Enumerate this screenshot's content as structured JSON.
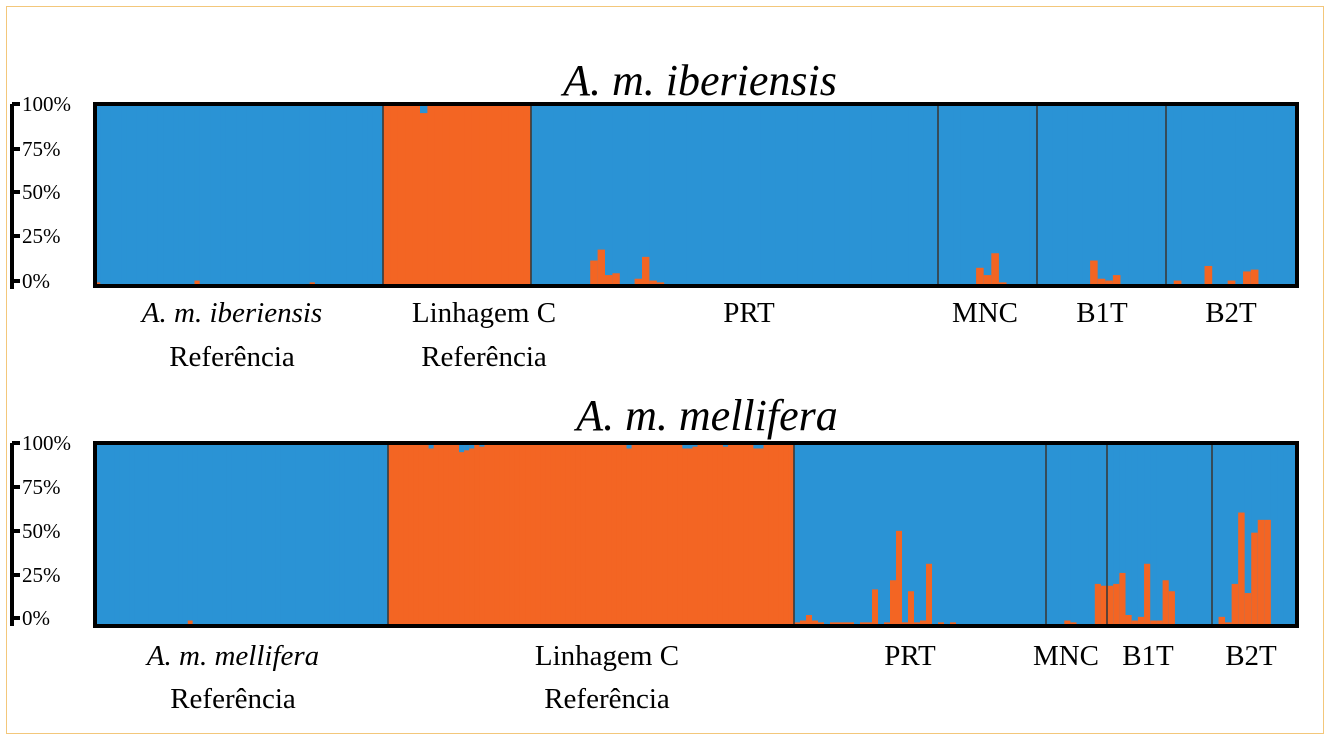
{
  "chart_data": [
    {
      "type": "bar",
      "subtype": "stacked-admixture",
      "title": "A. m. iberiensis",
      "ylim": [
        0,
        100
      ],
      "yticks": [
        "100%",
        "75%",
        "50%",
        "25%",
        "0%"
      ],
      "colors": {
        "major": "#2a93d5",
        "minor": "#f36523"
      },
      "groups": [
        {
          "label1": "A. m. iberiensis",
          "label2": "Referência",
          "label1_italic": true,
          "n": 55,
          "base": "major",
          "pattern": [
            [
              0,
              2
            ],
            [
              19,
              3
            ],
            [
              41,
              2
            ]
          ]
        },
        {
          "label1": "Linhagem C",
          "label2": "Referência",
          "label1_italic": false,
          "n": 20,
          "base": "minor",
          "pattern": [
            [
              5,
              5
            ]
          ]
        },
        {
          "label1": "PRT",
          "label2": "",
          "label1_italic": false,
          "n": 55,
          "base": "major",
          "pattern": [
            [
              8,
              14
            ],
            [
              9,
              20
            ],
            [
              10,
              6
            ],
            [
              11,
              7
            ],
            [
              14,
              4
            ],
            [
              15,
              16
            ],
            [
              16,
              3
            ],
            [
              17,
              2
            ],
            [
              22,
              1
            ]
          ]
        },
        {
          "label1": "MNC",
          "label2": "",
          "label1_italic": false,
          "n": 13,
          "base": "major",
          "pattern": [
            [
              5,
              10
            ],
            [
              6,
              6
            ],
            [
              7,
              18
            ],
            [
              8,
              2
            ]
          ]
        },
        {
          "label1": "B1T",
          "label2": "",
          "label1_italic": false,
          "n": 17,
          "base": "major",
          "pattern": [
            [
              7,
              14
            ],
            [
              8,
              4
            ],
            [
              9,
              3
            ],
            [
              10,
              6
            ]
          ]
        },
        {
          "label1": "B2T",
          "label2": "",
          "label1_italic": false,
          "n": 17,
          "base": "major",
          "pattern": [
            [
              1,
              3
            ],
            [
              5,
              11
            ],
            [
              8,
              3
            ],
            [
              10,
              8
            ],
            [
              11,
              9
            ]
          ]
        }
      ]
    },
    {
      "type": "bar",
      "subtype": "stacked-admixture",
      "title": "A. m. mellifera",
      "ylim": [
        0,
        100
      ],
      "yticks": [
        "100%",
        "75%",
        "50%",
        "25%",
        "0%"
      ],
      "colors": {
        "major": "#2a93d5",
        "minor": "#f36523"
      },
      "groups": [
        {
          "label1": "A. m. mellifera",
          "label2": "Referência",
          "label1_italic": true,
          "n": 60,
          "base": "major",
          "pattern": [
            [
              19,
              3
            ]
          ]
        },
        {
          "label1": "Linhagem C",
          "label2": "Referência",
          "label1_italic": false,
          "n": 80,
          "base": "minor",
          "pattern": [
            [
              8,
              3
            ],
            [
              14,
              5
            ],
            [
              15,
              4
            ],
            [
              16,
              3
            ],
            [
              18,
              2
            ],
            [
              47,
              3
            ],
            [
              58,
              3
            ],
            [
              59,
              3
            ],
            [
              60,
              2
            ],
            [
              66,
              2
            ],
            [
              72,
              3
            ],
            [
              73,
              3
            ]
          ]
        },
        {
          "label1": "PRT",
          "label2": "",
          "label1_italic": false,
          "n": 42,
          "base": "major",
          "pattern": [
            [
              0,
              2
            ],
            [
              1,
              3
            ],
            [
              2,
              6
            ],
            [
              3,
              3
            ],
            [
              4,
              2
            ],
            [
              5,
              1
            ],
            [
              6,
              2
            ],
            [
              7,
              2
            ],
            [
              8,
              2
            ],
            [
              9,
              2
            ],
            [
              10,
              1
            ],
            [
              11,
              2
            ],
            [
              12,
              2
            ],
            [
              13,
              20
            ],
            [
              14,
              1
            ],
            [
              15,
              2
            ],
            [
              16,
              25
            ],
            [
              17,
              52
            ],
            [
              18,
              2
            ],
            [
              19,
              19
            ],
            [
              20,
              2
            ],
            [
              21,
              3
            ],
            [
              22,
              34
            ],
            [
              23,
              1
            ],
            [
              24,
              2
            ],
            [
              25,
              1
            ],
            [
              26,
              2
            ]
          ]
        },
        {
          "label1": "MNC",
          "label2": "",
          "label1_italic": false,
          "n": 10,
          "base": "major",
          "pattern": [
            [
              3,
              3
            ],
            [
              4,
              2
            ],
            [
              5,
              1
            ],
            [
              6,
              1
            ],
            [
              8,
              23
            ],
            [
              9,
              22
            ]
          ]
        },
        {
          "label1": "B1T",
          "label2": "",
          "label1_italic": false,
          "n": 17,
          "base": "major",
          "pattern": [
            [
              0,
              22
            ],
            [
              1,
              23
            ],
            [
              2,
              29
            ],
            [
              3,
              6
            ],
            [
              4,
              3
            ],
            [
              5,
              5
            ],
            [
              6,
              34
            ],
            [
              7,
              3
            ],
            [
              8,
              3
            ],
            [
              9,
              25
            ],
            [
              10,
              19
            ]
          ]
        },
        {
          "label1": "B2T",
          "label2": "",
          "label1_italic": false,
          "n": 13,
          "base": "major",
          "pattern": [
            [
              1,
              5
            ],
            [
              2,
              2
            ],
            [
              3,
              23
            ],
            [
              4,
              62
            ],
            [
              5,
              18
            ],
            [
              6,
              51
            ],
            [
              7,
              58
            ],
            [
              8,
              58
            ]
          ]
        }
      ]
    }
  ]
}
